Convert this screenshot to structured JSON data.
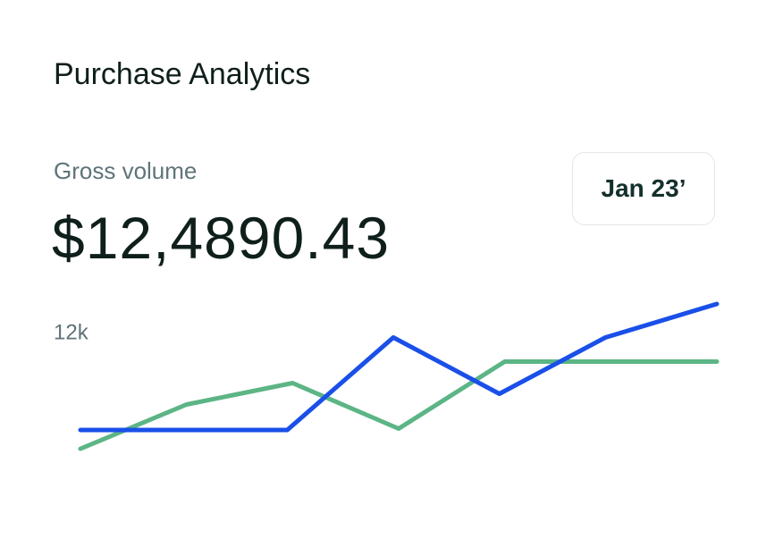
{
  "header": {
    "title": "Purchase Analytics",
    "subtitle": "Gross volume",
    "amount": "$12,4890.43",
    "period_button": "Jan 23’"
  },
  "chart_data": {
    "type": "line",
    "xlim": [
      0,
      12
    ],
    "ylim": [
      0,
      14500
    ],
    "yticks": [
      {
        "value": 12000,
        "label": "12k"
      }
    ],
    "grid": false,
    "series": [
      {
        "color": "#5cb585",
        "x": [
          0,
          2,
          4,
          6,
          8,
          10,
          12
        ],
        "values": [
          3400,
          6700,
          8300,
          4900,
          9900,
          9900,
          9900
        ]
      },
      {
        "color": "#1a4fe8",
        "x": [
          0,
          3.9,
          5.9,
          7.9,
          9.9,
          12
        ],
        "values": [
          4800,
          4800,
          11700,
          7500,
          11700,
          14200
        ]
      }
    ]
  }
}
